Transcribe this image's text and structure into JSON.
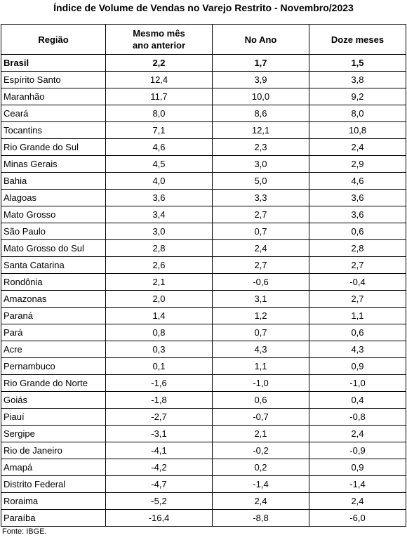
{
  "header": {
    "title": "Índice de Volume de Vendas no Varejo Restrito - Novembro/2023"
  },
  "table": {
    "columns": [
      "Região",
      "Mesmo mês\nano anterior",
      "No Ano",
      "Doze meses"
    ],
    "rows": [
      [
        "Brasil",
        "2,2",
        "1,7",
        "1,5"
      ],
      [
        "Espírito Santo",
        "12,4",
        "3,9",
        "3,8"
      ],
      [
        "Maranhão",
        "11,7",
        "10,0",
        "9,2"
      ],
      [
        "Ceará",
        "8,0",
        "8,6",
        "8,0"
      ],
      [
        "Tocantins",
        "7,1",
        "12,1",
        "10,8"
      ],
      [
        "Rio Grande do Sul",
        "4,6",
        "2,3",
        "2,4"
      ],
      [
        "Minas Gerais",
        "4,5",
        "3,0",
        "2,9"
      ],
      [
        "Bahia",
        "4,0",
        "5,0",
        "4,6"
      ],
      [
        "Alagoas",
        "3,6",
        "3,3",
        "3,6"
      ],
      [
        "Mato Grosso",
        "3,4",
        "2,7",
        "3,6"
      ],
      [
        "São Paulo",
        "3,0",
        "0,7",
        "0,6"
      ],
      [
        "Mato Grosso do Sul",
        "2,8",
        "2,4",
        "2,8"
      ],
      [
        "Santa Catarina",
        "2,6",
        "2,7",
        "2,7"
      ],
      [
        "Rondônia",
        "2,1",
        "-0,6",
        "-0,4"
      ],
      [
        "Amazonas",
        "2,0",
        "3,1",
        "2,7"
      ],
      [
        "Paraná",
        "1,4",
        "1,2",
        "1,1"
      ],
      [
        "Pará",
        "0,8",
        "0,7",
        "0,6"
      ],
      [
        "Acre",
        "0,3",
        "4,3",
        "4,3"
      ],
      [
        "Pernambuco",
        "0,1",
        "1,1",
        "0,9"
      ],
      [
        "Rio Grande do Norte",
        "-1,6",
        "-1,0",
        "-1,0"
      ],
      [
        "Goiás",
        "-1,8",
        "0,6",
        "0,4"
      ],
      [
        "Piauí",
        "-2,7",
        "-0,7",
        "-0,8"
      ],
      [
        "Sergipe",
        "-3,1",
        "2,1",
        "2,4"
      ],
      [
        "Rio de Janeiro",
        "-4,1",
        "-0,2",
        "-0,9"
      ],
      [
        "Amapá",
        "-4,2",
        "0,2",
        "0,9"
      ],
      [
        "Distrito Federal",
        "-4,7",
        "-1,4",
        "-1,4"
      ],
      [
        "Roraima",
        "-5,2",
        "2,4",
        "2,4"
      ],
      [
        "Paraíba",
        "-16,4",
        "-8,8",
        "-6,0"
      ]
    ]
  },
  "footer": {
    "source": "Fonte: IBGE."
  }
}
